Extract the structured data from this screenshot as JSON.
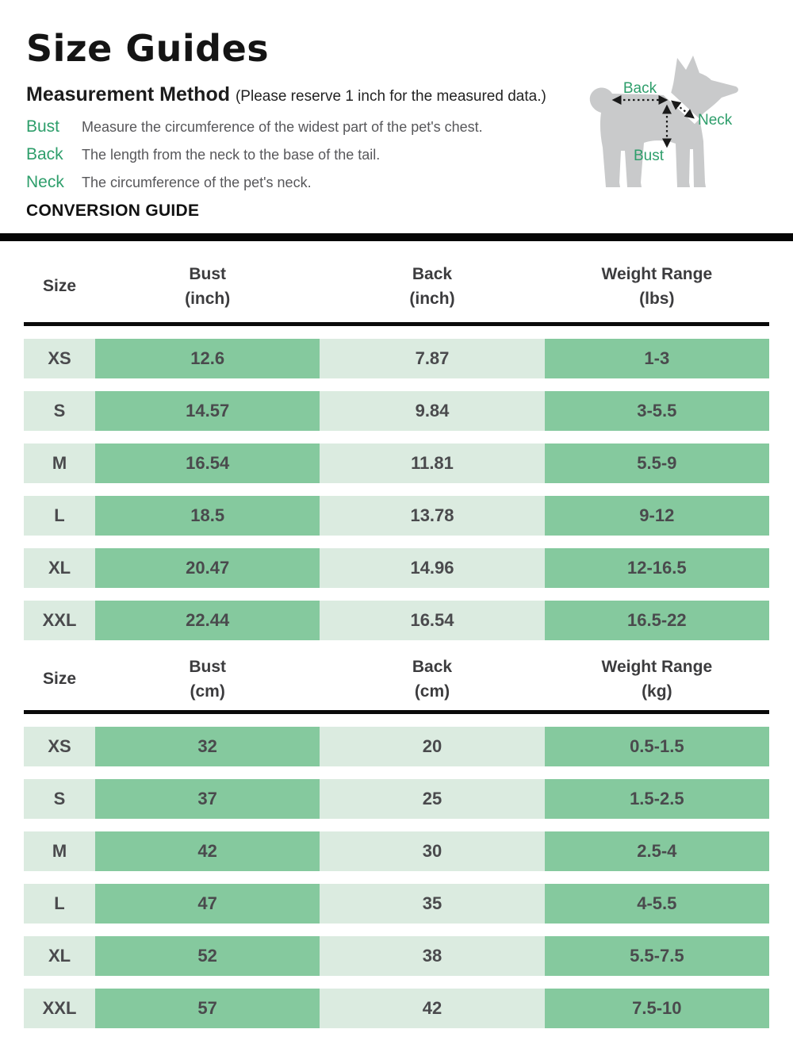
{
  "page": {
    "title": "Size Guides",
    "section_heading": "Measurement Method",
    "section_note": "(Please reserve 1 inch for the measured data.)",
    "terms": [
      {
        "term": "Bust",
        "description": "Measure the circumference of the widest part of the pet's chest."
      },
      {
        "term": "Back",
        "description": "The length from the neck to the base of the tail."
      },
      {
        "term": "Neck",
        "description": "The circumference of the pet's neck."
      }
    ],
    "conversion_heading": "CONVERSION GUIDE"
  },
  "diagram": {
    "labels": {
      "back": "Back",
      "neck": "Neck",
      "bust": "Bust"
    }
  },
  "colors": {
    "accent_green": "#2E9E6B",
    "cell_green_dark": "#85C99E",
    "cell_green_light": "#DBEBE0",
    "dog_gray": "#C9CACB",
    "divider_black": "#060606"
  },
  "tables": [
    {
      "name": "inches",
      "headers": [
        {
          "label": "Size",
          "unit": ""
        },
        {
          "label": "Bust",
          "unit": "(inch)"
        },
        {
          "label": "Back",
          "unit": "(inch)"
        },
        {
          "label": "Weight Range",
          "unit": "(lbs)"
        }
      ],
      "rows": [
        [
          "XS",
          "12.6",
          "7.87",
          "1-3"
        ],
        [
          "S",
          "14.57",
          "9.84",
          "3-5.5"
        ],
        [
          "M",
          "16.54",
          "11.81",
          "5.5-9"
        ],
        [
          "L",
          "18.5",
          "13.78",
          "9-12"
        ],
        [
          "XL",
          "20.47",
          "14.96",
          "12-16.5"
        ],
        [
          "XXL",
          "22.44",
          "16.54",
          "16.5-22"
        ]
      ]
    },
    {
      "name": "centimeters",
      "headers": [
        {
          "label": "Size",
          "unit": ""
        },
        {
          "label": "Bust",
          "unit": "(cm)"
        },
        {
          "label": "Back",
          "unit": "(cm)"
        },
        {
          "label": "Weight Range",
          "unit": "(kg)"
        }
      ],
      "rows": [
        [
          "XS",
          "32",
          "20",
          "0.5-1.5"
        ],
        [
          "S",
          "37",
          "25",
          "1.5-2.5"
        ],
        [
          "M",
          "42",
          "30",
          "2.5-4"
        ],
        [
          "L",
          "47",
          "35",
          "4-5.5"
        ],
        [
          "XL",
          "52",
          "38",
          "5.5-7.5"
        ],
        [
          "XXL",
          "57",
          "42",
          "7.5-10"
        ]
      ]
    }
  ]
}
